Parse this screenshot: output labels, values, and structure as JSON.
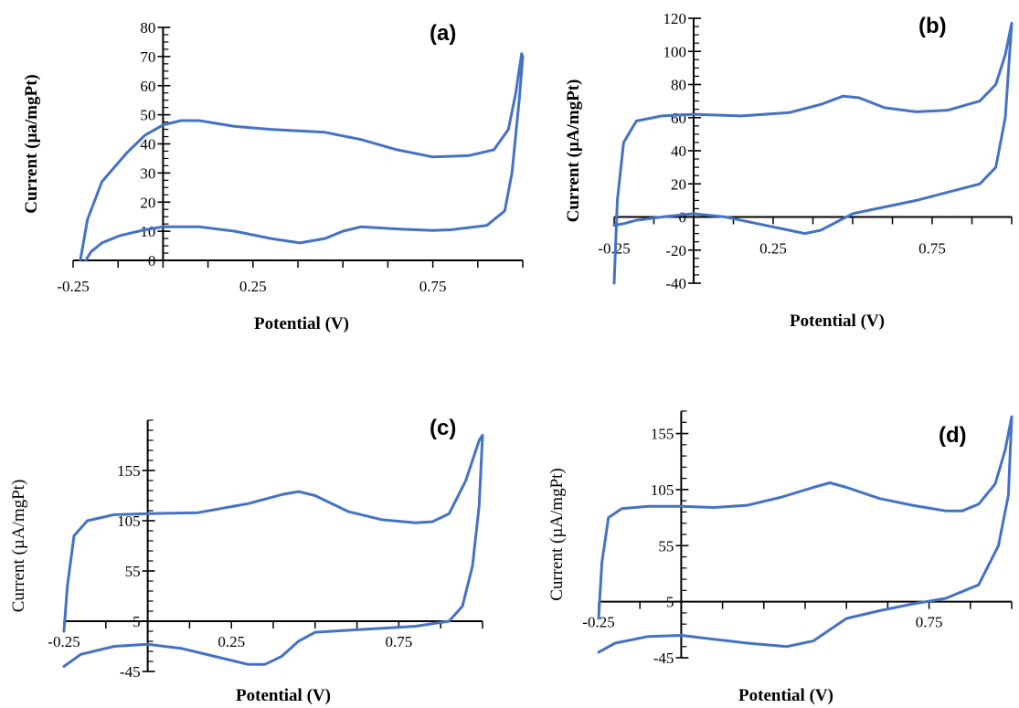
{
  "chart_data": [
    {
      "type": "line",
      "panel_label": "(a)",
      "xlabel": "Potential (V)",
      "ylabel": "Current (µa/mgPt)",
      "ylabel_bold": true,
      "xlim": [
        -0.25,
        1.0
      ],
      "ylim": [
        0,
        80
      ],
      "x_tick_labels": [
        "-0.25",
        "0.25",
        "0.75"
      ],
      "x_tick_values": [
        -0.25,
        0.25,
        0.75
      ],
      "y_tick_labels": [
        "0",
        "10",
        "20",
        "30",
        "40",
        "50",
        "60",
        "70",
        "80"
      ],
      "y_tick_values": [
        0,
        10,
        20,
        30,
        40,
        50,
        60,
        70,
        80
      ],
      "y_minor_step": 2.5,
      "series": [
        {
          "color": "#4472C4",
          "points": [
            [
              -0.23,
              0
            ],
            [
              -0.21,
              14
            ],
            [
              -0.17,
              27
            ],
            [
              -0.1,
              37
            ],
            [
              -0.05,
              43
            ],
            [
              0.0,
              46.5
            ],
            [
              0.05,
              48
            ],
            [
              0.1,
              48
            ],
            [
              0.2,
              46
            ],
            [
              0.3,
              45
            ],
            [
              0.45,
              44
            ],
            [
              0.55,
              41.5
            ],
            [
              0.65,
              38
            ],
            [
              0.75,
              35.5
            ],
            [
              0.85,
              36
            ],
            [
              0.92,
              38
            ],
            [
              0.96,
              45
            ],
            [
              0.98,
              57
            ],
            [
              0.997,
              71
            ],
            [
              1.0,
              70
            ],
            [
              0.99,
              55
            ],
            [
              0.97,
              30
            ],
            [
              0.95,
              17
            ],
            [
              0.9,
              12
            ],
            [
              0.8,
              10.5
            ],
            [
              0.75,
              10.3
            ],
            [
              0.65,
              10.8
            ],
            [
              0.55,
              11.5
            ],
            [
              0.5,
              10
            ],
            [
              0.45,
              7.5
            ],
            [
              0.38,
              6
            ],
            [
              0.3,
              7.5
            ],
            [
              0.2,
              10
            ],
            [
              0.1,
              11.5
            ],
            [
              0.0,
              11.5
            ],
            [
              -0.05,
              10.5
            ],
            [
              -0.12,
              8.5
            ],
            [
              -0.17,
              6
            ],
            [
              -0.2,
              3
            ],
            [
              -0.215,
              0
            ]
          ]
        }
      ]
    },
    {
      "type": "line",
      "panel_label": "(b)",
      "xlabel": "Potential (V)",
      "ylabel": "Current (µA/mgPt)",
      "ylabel_bold": true,
      "xlim": [
        -0.25,
        1.0
      ],
      "ylim": [
        -40,
        120
      ],
      "x_tick_labels": [
        "-0.25",
        "0.25",
        "0.75"
      ],
      "x_tick_values": [
        -0.25,
        0.25,
        0.75
      ],
      "y_tick_labels": [
        "-40",
        "-20",
        "0",
        "20",
        "40",
        "60",
        "80",
        "100",
        "120"
      ],
      "y_tick_values": [
        -40,
        -20,
        0,
        20,
        40,
        60,
        80,
        100,
        120
      ],
      "y_minor_step": 5,
      "series": [
        {
          "color": "#4472C4",
          "points": [
            [
              -0.25,
              -40
            ],
            [
              -0.24,
              10
            ],
            [
              -0.22,
              45
            ],
            [
              -0.18,
              58
            ],
            [
              -0.1,
              61
            ],
            [
              0.0,
              62
            ],
            [
              0.15,
              61
            ],
            [
              0.3,
              63
            ],
            [
              0.4,
              68
            ],
            [
              0.47,
              73
            ],
            [
              0.52,
              72
            ],
            [
              0.6,
              66
            ],
            [
              0.7,
              63.5
            ],
            [
              0.8,
              64.5
            ],
            [
              0.9,
              70
            ],
            [
              0.95,
              80
            ],
            [
              0.98,
              98
            ],
            [
              1.0,
              117
            ],
            [
              0.98,
              60
            ],
            [
              0.95,
              30
            ],
            [
              0.9,
              20
            ],
            [
              0.8,
              15
            ],
            [
              0.7,
              10
            ],
            [
              0.6,
              6
            ],
            [
              0.5,
              2
            ],
            [
              0.45,
              -3
            ],
            [
              0.4,
              -8
            ],
            [
              0.35,
              -10
            ],
            [
              0.3,
              -8
            ],
            [
              0.2,
              -4
            ],
            [
              0.1,
              0
            ],
            [
              0.0,
              2
            ],
            [
              -0.1,
              0
            ],
            [
              -0.18,
              -2
            ],
            [
              -0.22,
              -4
            ],
            [
              -0.25,
              -5
            ]
          ]
        }
      ]
    },
    {
      "type": "line",
      "panel_label": "(c)",
      "xlabel": "Potential (V)",
      "ylabel": "Current (µA/mgPt)",
      "ylabel_bold": false,
      "xlim": [
        -0.25,
        1.0
      ],
      "ylim": [
        -45,
        205
      ],
      "x_tick_labels": [
        "-0.25",
        "0.25",
        "0.75"
      ],
      "x_tick_values": [
        -0.25,
        0.25,
        0.75
      ],
      "y_tick_labels": [
        "-45",
        "5",
        "55",
        "105",
        "155"
      ],
      "y_tick_values": [
        -45,
        5,
        55,
        105,
        155
      ],
      "y_minor_step": 10,
      "series": [
        {
          "color": "#4472C4",
          "points": [
            [
              -0.25,
              -5
            ],
            [
              -0.24,
              40
            ],
            [
              -0.22,
              90
            ],
            [
              -0.18,
              105
            ],
            [
              -0.1,
              111
            ],
            [
              0.0,
              112
            ],
            [
              0.15,
              113
            ],
            [
              0.3,
              122
            ],
            [
              0.4,
              131
            ],
            [
              0.45,
              134
            ],
            [
              0.5,
              130
            ],
            [
              0.6,
              114
            ],
            [
              0.7,
              106
            ],
            [
              0.8,
              103
            ],
            [
              0.85,
              104
            ],
            [
              0.9,
              112
            ],
            [
              0.95,
              145
            ],
            [
              0.99,
              185
            ],
            [
              1.0,
              190
            ],
            [
              0.99,
              120
            ],
            [
              0.97,
              60
            ],
            [
              0.94,
              20
            ],
            [
              0.9,
              5
            ],
            [
              0.8,
              0
            ],
            [
              0.7,
              -2
            ],
            [
              0.6,
              -4
            ],
            [
              0.5,
              -6
            ],
            [
              0.45,
              -15
            ],
            [
              0.4,
              -30
            ],
            [
              0.35,
              -38
            ],
            [
              0.3,
              -38
            ],
            [
              0.2,
              -30
            ],
            [
              0.1,
              -22
            ],
            [
              0.0,
              -18
            ],
            [
              -0.1,
              -20
            ],
            [
              -0.2,
              -28
            ],
            [
              -0.25,
              -40
            ]
          ]
        }
      ]
    },
    {
      "type": "line",
      "panel_label": "(d)",
      "xlabel": "Potential (V)",
      "ylabel": "Current (µA/mgPt)",
      "ylabel_bold": false,
      "xlim": [
        -0.25,
        1.0
      ],
      "ylim": [
        -45,
        175
      ],
      "x_tick_labels": [
        "-0.25",
        "0.75"
      ],
      "x_tick_values": [
        -0.25,
        0.75
      ],
      "y_tick_labels": [
        "-45",
        "5",
        "55",
        "105",
        "155"
      ],
      "y_tick_values": [
        -45,
        5,
        55,
        105,
        155
      ],
      "y_minor_step": 10,
      "series": [
        {
          "color": "#4472C4",
          "points": [
            [
              -0.25,
              -10
            ],
            [
              -0.24,
              40
            ],
            [
              -0.22,
              80
            ],
            [
              -0.18,
              88
            ],
            [
              -0.1,
              90
            ],
            [
              0.0,
              90
            ],
            [
              0.1,
              89
            ],
            [
              0.2,
              91
            ],
            [
              0.3,
              98
            ],
            [
              0.4,
              107
            ],
            [
              0.45,
              111
            ],
            [
              0.5,
              107
            ],
            [
              0.6,
              97
            ],
            [
              0.7,
              91
            ],
            [
              0.8,
              86
            ],
            [
              0.85,
              86
            ],
            [
              0.9,
              92
            ],
            [
              0.95,
              110
            ],
            [
              0.98,
              140
            ],
            [
              1.0,
              170
            ],
            [
              0.99,
              100
            ],
            [
              0.96,
              55
            ],
            [
              0.9,
              20
            ],
            [
              0.8,
              8
            ],
            [
              0.7,
              3
            ],
            [
              0.6,
              -3
            ],
            [
              0.5,
              -10
            ],
            [
              0.45,
              -20
            ],
            [
              0.4,
              -30
            ],
            [
              0.32,
              -35
            ],
            [
              0.2,
              -32
            ],
            [
              0.0,
              -25
            ],
            [
              -0.1,
              -26
            ],
            [
              -0.2,
              -32
            ],
            [
              -0.25,
              -40
            ]
          ]
        }
      ]
    }
  ]
}
